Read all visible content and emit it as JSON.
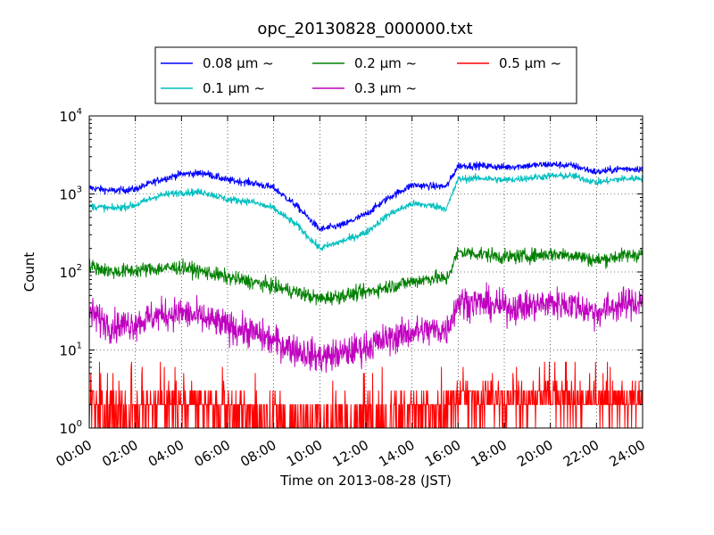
{
  "chart_data": {
    "type": "line",
    "title": "opc_20130828_000000.txt",
    "xlabel": "Time on 2013-08-28 (JST)",
    "ylabel": "Count",
    "yscale": "log",
    "ylim": [
      1,
      10000
    ],
    "xlim": [
      "00:00",
      "24:00"
    ],
    "grid": true,
    "legend_position": "top-center",
    "x_tick_labels": [
      "00:00",
      "02:00",
      "04:00",
      "06:00",
      "08:00",
      "10:00",
      "12:00",
      "14:00",
      "16:00",
      "18:00",
      "20:00",
      "22:00",
      "24:00"
    ],
    "y_ticks": [
      {
        "base": "10",
        "exp": "0"
      },
      {
        "base": "10",
        "exp": "1"
      },
      {
        "base": "10",
        "exp": "2"
      },
      {
        "base": "10",
        "exp": "3"
      },
      {
        "base": "10",
        "exp": "4"
      }
    ],
    "x": [
      "00:00",
      "01:00",
      "02:00",
      "03:00",
      "04:00",
      "05:00",
      "06:00",
      "07:00",
      "08:00",
      "09:00",
      "10:00",
      "11:00",
      "12:00",
      "13:00",
      "14:00",
      "15:00",
      "15:30",
      "16:00",
      "17:00",
      "18:00",
      "19:00",
      "20:00",
      "21:00",
      "22:00",
      "23:00",
      "24:00"
    ],
    "series": [
      {
        "name": "0.08 μm ~",
        "color": "#0000ff",
        "noise": "low",
        "values": [
          1200,
          1100,
          1150,
          1500,
          1800,
          1850,
          1500,
          1400,
          1200,
          700,
          350,
          400,
          550,
          900,
          1300,
          1250,
          1250,
          2300,
          2300,
          2200,
          2300,
          2400,
          2300,
          1900,
          2100,
          2100
        ]
      },
      {
        "name": "0.1 μm ~",
        "color": "#00bfbf",
        "noise": "low",
        "values": [
          700,
          650,
          720,
          950,
          1050,
          1050,
          850,
          800,
          650,
          400,
          200,
          250,
          320,
          550,
          750,
          700,
          650,
          1550,
          1600,
          1500,
          1600,
          1700,
          1700,
          1400,
          1550,
          1600
        ]
      },
      {
        "name": "0.2 μm ~",
        "color": "#008000",
        "noise": "medium",
        "values": [
          120,
          100,
          105,
          110,
          115,
          100,
          85,
          75,
          65,
          55,
          45,
          50,
          55,
          65,
          75,
          85,
          80,
          180,
          170,
          155,
          160,
          170,
          165,
          140,
          160,
          170
        ]
      },
      {
        "name": "0.3 μm ~",
        "color": "#bf00bf",
        "noise": "high",
        "values": [
          30,
          20,
          22,
          28,
          30,
          25,
          20,
          17,
          13,
          10,
          8,
          9,
          11,
          14,
          17,
          18,
          18,
          42,
          40,
          35,
          36,
          40,
          38,
          30,
          38,
          42
        ]
      },
      {
        "name": "0.5 μm ~",
        "color": "#ff0000",
        "noise": "discrete",
        "values": [
          2,
          1.5,
          1.5,
          2,
          2,
          2,
          1.8,
          1.5,
          1.5,
          1.2,
          1.2,
          1.2,
          1.2,
          1.5,
          1.8,
          1.8,
          1.8,
          2.5,
          2.5,
          2.3,
          2.3,
          2.5,
          2.3,
          2,
          2.3,
          2.5
        ]
      }
    ]
  }
}
